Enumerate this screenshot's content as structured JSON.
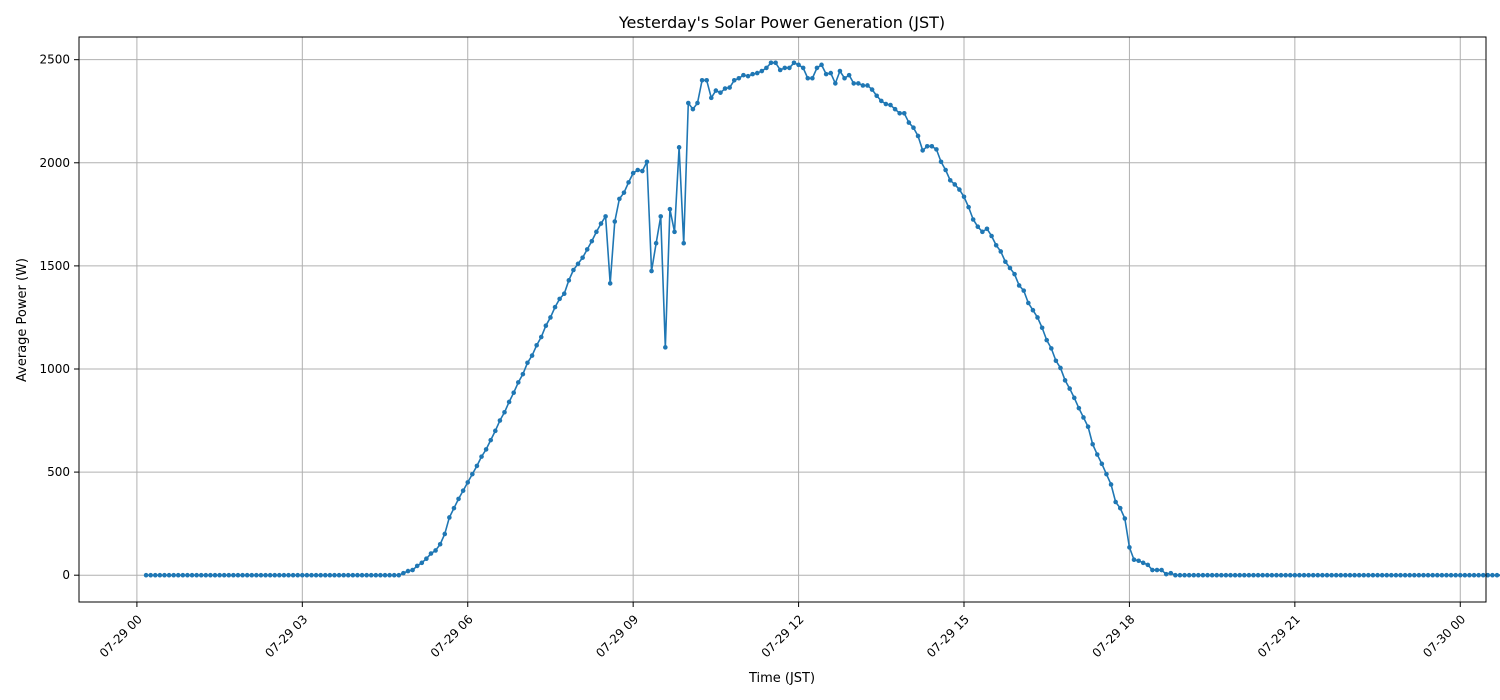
{
  "chart_data": {
    "type": "line",
    "title": "Yesterday's Solar Power Generation (JST)",
    "xlabel": "Time (JST)",
    "ylabel": "Average Power (W)",
    "grid": true,
    "marker": "circle",
    "color": "#1f77b4",
    "xlim": [
      "07-28 22:57",
      "07-30 00:28"
    ],
    "ylim": [
      -130,
      2610
    ],
    "x_ticks": [
      "07-29 00",
      "07-29 03",
      "07-29 06",
      "07-29 09",
      "07-29 12",
      "07-29 15",
      "07-29 18",
      "07-29 21",
      "07-30 00"
    ],
    "y_ticks": [
      0,
      500,
      1000,
      1500,
      2000,
      2500
    ],
    "sample_interval_minutes": 5,
    "first_sample": "07-29 00:10",
    "series": [
      {
        "values": [
          0,
          0,
          0,
          0,
          0,
          0,
          0,
          0,
          0,
          0,
          0,
          0,
          0,
          0,
          0,
          0,
          0,
          0,
          0,
          0,
          0,
          0,
          0,
          0,
          0,
          0,
          0,
          0,
          0,
          0,
          0,
          0,
          0,
          0,
          0,
          0,
          0,
          0,
          0,
          0,
          0,
          0,
          0,
          0,
          0,
          0,
          0,
          0,
          0,
          0,
          0,
          0,
          0,
          0,
          0,
          0,
          10,
          20,
          25,
          45,
          60,
          80,
          105,
          120,
          150,
          200,
          280,
          325,
          370,
          410,
          450,
          490,
          530,
          575,
          610,
          655,
          700,
          750,
          790,
          840,
          885,
          935,
          975,
          1030,
          1065,
          1115,
          1155,
          1210,
          1250,
          1300,
          1340,
          1365,
          1430,
          1480,
          1510,
          1540,
          1580,
          1620,
          1665,
          1705,
          1740,
          1415,
          1715,
          1825,
          1855,
          1905,
          1950,
          1965,
          1960,
          2005,
          1475,
          1610,
          1740,
          1105,
          1775,
          1665,
          2075,
          1610,
          2290,
          2260,
          2290,
          2400,
          2400,
          2315,
          2350,
          2340,
          2360,
          2365,
          2400,
          2410,
          2425,
          2420,
          2430,
          2435,
          2445,
          2460,
          2485,
          2485,
          2450,
          2460,
          2460,
          2485,
          2475,
          2460,
          2410,
          2410,
          2460,
          2475,
          2430,
          2435,
          2385,
          2445,
          2410,
          2425,
          2385,
          2385,
          2375,
          2375,
          2355,
          2325,
          2300,
          2285,
          2280,
          2260,
          2240,
          2240,
          2195,
          2170,
          2130,
          2060,
          2080,
          2080,
          2065,
          2005,
          1965,
          1915,
          1895,
          1870,
          1835,
          1785,
          1725,
          1690,
          1665,
          1680,
          1645,
          1600,
          1570,
          1520,
          1490,
          1460,
          1405,
          1380,
          1320,
          1285,
          1250,
          1200,
          1140,
          1100,
          1040,
          1005,
          945,
          905,
          860,
          810,
          765,
          720,
          635,
          585,
          540,
          490,
          440,
          355,
          325,
          275,
          135,
          75,
          70,
          60,
          50,
          25,
          25,
          25,
          5,
          10,
          0,
          0,
          0,
          0,
          0,
          0,
          0,
          0,
          0,
          0,
          0,
          0,
          0,
          0,
          0,
          0,
          0,
          0,
          0,
          0,
          0,
          0,
          0,
          0,
          0,
          0,
          0,
          0,
          0,
          0,
          0,
          0,
          0,
          0,
          0,
          0,
          0,
          0,
          0,
          0,
          0,
          0,
          0,
          0,
          0,
          0,
          0,
          0,
          0,
          0,
          0,
          0,
          0,
          0,
          0,
          0,
          0,
          0,
          0,
          0,
          0,
          0,
          0,
          0,
          0,
          0,
          0,
          0,
          0,
          0,
          0,
          0,
          0,
          0,
          0,
          0,
          0,
          0,
          0,
          0,
          0,
          0,
          0,
          0,
          0,
          0,
          0,
          0
        ]
      }
    ]
  }
}
